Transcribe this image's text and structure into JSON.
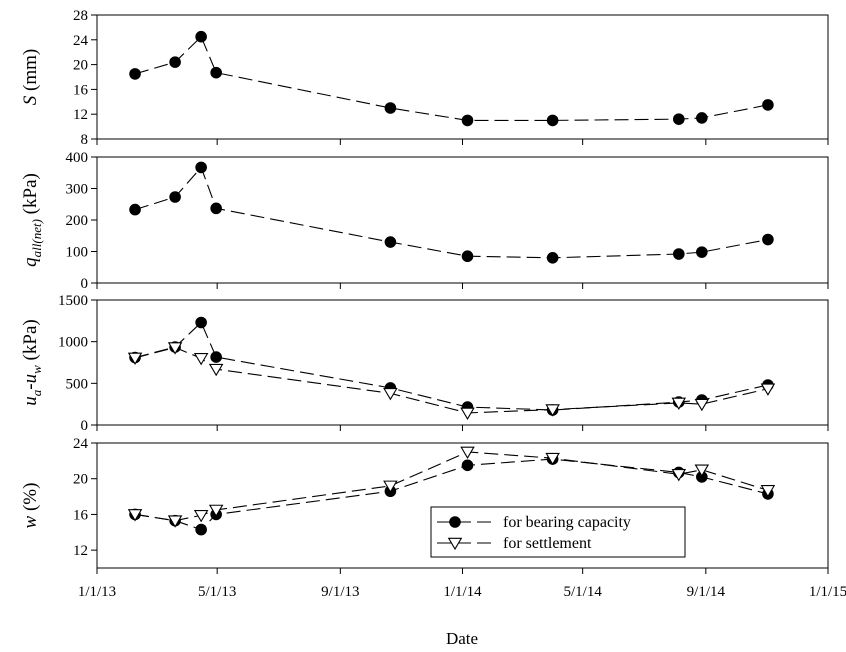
{
  "chart_data": {
    "type": "line",
    "xlabel": "Date",
    "x_ticks": [
      "1/1/13",
      "5/1/13",
      "9/1/13",
      "1/1/14",
      "5/1/14",
      "9/1/14",
      "1/1/15"
    ],
    "x_range": [
      "2013-01-01",
      "2015-01-01"
    ],
    "panels": [
      {
        "id": "S",
        "ylabel": "S (mm)",
        "ylabel_main": "S",
        "ylabel_unit": " (mm)",
        "ylim": [
          8,
          28
        ],
        "yticks": [
          "8",
          "12",
          "16",
          "20",
          "24",
          "28"
        ],
        "series": [
          {
            "marker": "filled-circle",
            "dates": [
              "2013-02-08",
              "2013-03-20",
              "2013-04-15",
              "2013-04-30",
              "2013-10-21",
              "2014-01-06",
              "2014-04-01",
              "2014-08-05",
              "2014-08-28",
              "2014-11-02"
            ],
            "values": [
              18.5,
              20.4,
              24.5,
              18.7,
              13.0,
              11.0,
              11.0,
              11.2,
              11.4,
              13.5
            ]
          }
        ]
      },
      {
        "id": "q",
        "ylabel": "q_all(net) (kPa)",
        "ylabel_main": "q",
        "ylabel_sub": "all(net)",
        "ylabel_unit": " (kPa)",
        "ylim": [
          0,
          400
        ],
        "yticks": [
          "0",
          "100",
          "200",
          "300",
          "400"
        ],
        "series": [
          {
            "marker": "filled-circle",
            "dates": [
              "2013-02-08",
              "2013-03-20",
              "2013-04-15",
              "2013-04-30",
              "2013-10-21",
              "2014-01-06",
              "2014-04-01",
              "2014-08-05",
              "2014-08-28",
              "2014-11-02"
            ],
            "values": [
              233,
              273,
              367,
              237,
              130,
              85,
              80,
              92,
              98,
              138
            ]
          }
        ]
      },
      {
        "id": "suction",
        "ylabel": "u_a-u_w (kPa)",
        "ylabel_main": "u",
        "ylabel_sub": "a",
        "ylabel_mid": "-u",
        "ylabel_sub2": "w",
        "ylabel_unit": " (kPa)",
        "ylim": [
          0,
          1500
        ],
        "yticks": [
          "0",
          "500",
          "1000",
          "1500"
        ],
        "series": [
          {
            "marker": "filled-circle",
            "dates": [
              "2013-02-08",
              "2013-03-20",
              "2013-04-15",
              "2013-04-30",
              "2013-10-21",
              "2014-01-06",
              "2014-04-01",
              "2014-08-05",
              "2014-08-28",
              "2014-11-02"
            ],
            "values": [
              810,
              935,
              1230,
              815,
              445,
              215,
              180,
              275,
              300,
              480
            ]
          },
          {
            "marker": "open-triangle",
            "dates": [
              "2013-02-08",
              "2013-03-20",
              "2013-04-15",
              "2013-04-30",
              "2013-10-21",
              "2014-01-06",
              "2014-04-01",
              "2014-08-05",
              "2014-08-28",
              "2014-11-02"
            ],
            "values": [
              805,
              930,
              800,
              670,
              380,
              145,
              185,
              265,
              250,
              435
            ]
          }
        ]
      },
      {
        "id": "w",
        "ylabel": "w (%)",
        "ylabel_main": "w",
        "ylabel_unit": " (%)",
        "ylim": [
          10,
          24
        ],
        "yticks": [
          "12",
          "16",
          "20",
          "24"
        ],
        "series": [
          {
            "name": "for bearing capacity",
            "marker": "filled-circle",
            "dates": [
              "2013-02-08",
              "2013-03-20",
              "2013-04-15",
              "2013-04-30",
              "2013-10-21",
              "2014-01-06",
              "2014-04-01",
              "2014-08-05",
              "2014-08-28",
              "2014-11-02"
            ],
            "values": [
              16.0,
              15.3,
              14.3,
              16.0,
              18.6,
              21.5,
              22.2,
              20.7,
              20.2,
              18.3
            ]
          },
          {
            "name": "for settlement",
            "marker": "open-triangle",
            "dates": [
              "2013-02-08",
              "2013-03-20",
              "2013-04-15",
              "2013-04-30",
              "2013-10-21",
              "2014-01-06",
              "2014-04-01",
              "2014-08-05",
              "2014-08-28",
              "2014-11-02"
            ],
            "values": [
              16.0,
              15.3,
              15.9,
              16.5,
              19.2,
              23.0,
              22.3,
              20.5,
              21.0,
              18.7
            ]
          }
        ],
        "legend": {
          "placement": "bottom-right",
          "entries": [
            "for bearing capacity",
            "for settlement"
          ]
        }
      }
    ]
  }
}
